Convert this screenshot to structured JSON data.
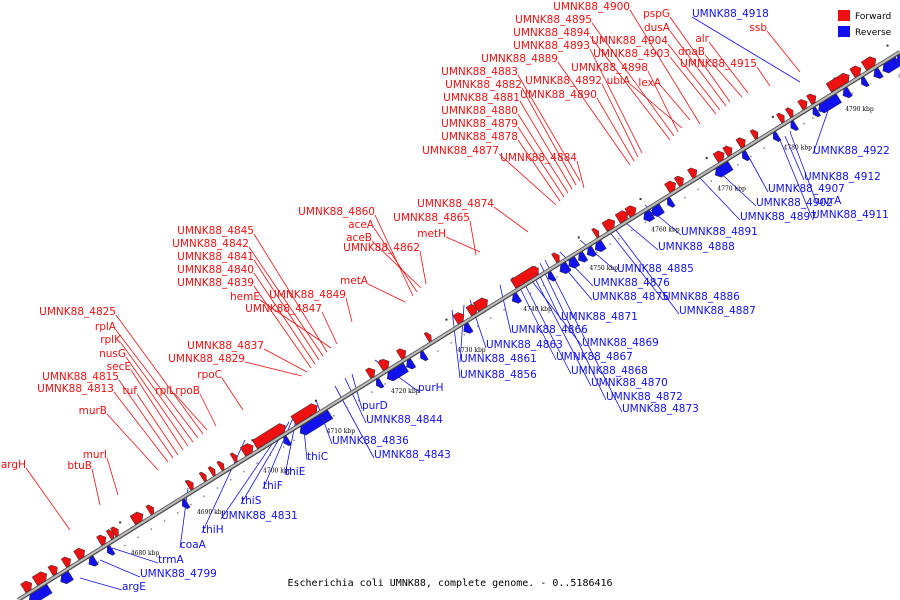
{
  "caption": "Escherichia coli UMNK88, complete genome. - 0..5186416",
  "colors": {
    "forward": "#ee1111",
    "reverse": "#1111ee",
    "axis": "#888888"
  },
  "legend": [
    {
      "label": "Forward",
      "strand": "forward"
    },
    {
      "label": "Reverse",
      "strand": "reverse"
    }
  ],
  "ticks": [
    "4680 kbp",
    "4690 kbp",
    "4700 kbp",
    "4710 kbp",
    "4720 kbp",
    "4730 kbp",
    "4740 kbp",
    "4750 kbp",
    "4760 kbp",
    "4770 kbp",
    "4780 kbp",
    "4790 kbp",
    "4800 kbp"
  ],
  "forward_labels": [
    "argH",
    "btuB",
    "murI",
    "murB",
    "UMNK88_4813",
    "UMNK88_4815",
    "tuf",
    "secE",
    "nusG",
    "rplK",
    "rplA",
    "UMNK88_4825",
    "rplL",
    "rpoB",
    "rpoC",
    "UMNK88_4829",
    "UMNK88_4837",
    "UMNK88_4839",
    "UMNK88_4840",
    "UMNK88_4841",
    "UMNK88_4842",
    "UMNK88_4845",
    "hemE",
    "UMNK88_4847",
    "UMNK88_4849",
    "metA",
    "UMNK88_4860",
    "aceA",
    "aceB",
    "UMNK88_4862",
    "UMNK88_4865",
    "metH",
    "UMNK88_4874",
    "UMNK88_4877",
    "UMNK88_4878",
    "UMNK88_4879",
    "UMNK88_4880",
    "UMNK88_4881",
    "UMNK88_4882",
    "UMNK88_4883",
    "UMNK88_4884",
    "UMNK88_4889",
    "UMNK88_4890",
    "UMNK88_4892",
    "UMNK88_4893",
    "UMNK88_4894",
    "UMNK88_4895",
    "UMNK88_4898",
    "ubiA",
    "UMNK88_4900",
    "UMNK88_4903",
    "UMNK88_4904",
    "dusA",
    "pspG",
    "lexA",
    "dnaB",
    "alr",
    "UMNK88_4915",
    "ssb"
  ],
  "reverse_labels": [
    "argE",
    "UMNK88_4799",
    "trmA",
    "coaA",
    "thiH",
    "UMNK88_4831",
    "thiS",
    "thiF",
    "thiE",
    "thiC",
    "UMNK88_4836",
    "UMNK88_4843",
    "UMNK88_4844",
    "purD",
    "purH",
    "UMNK88_4856",
    "UMNK88_4861",
    "UMNK88_4863",
    "UMNK88_4866",
    "UMNK88_4867",
    "UMNK88_4868",
    "UMNK88_4869",
    "UMNK88_4870",
    "UMNK88_4871",
    "UMNK88_4872",
    "UMNK88_4873",
    "UMNK88_4875",
    "UMNK88_4876",
    "UMNK88_4885",
    "UMNK88_4886",
    "UMNK88_4887",
    "UMNK88_4888",
    "UMNK88_4891",
    "UMNK88_4897",
    "UMNK88_4902",
    "UMNK88_4907",
    "UMNK88_4911",
    "UMNK88_4912",
    "uvrA",
    "UMNK88_4918",
    "UMNK88_4922"
  ]
}
